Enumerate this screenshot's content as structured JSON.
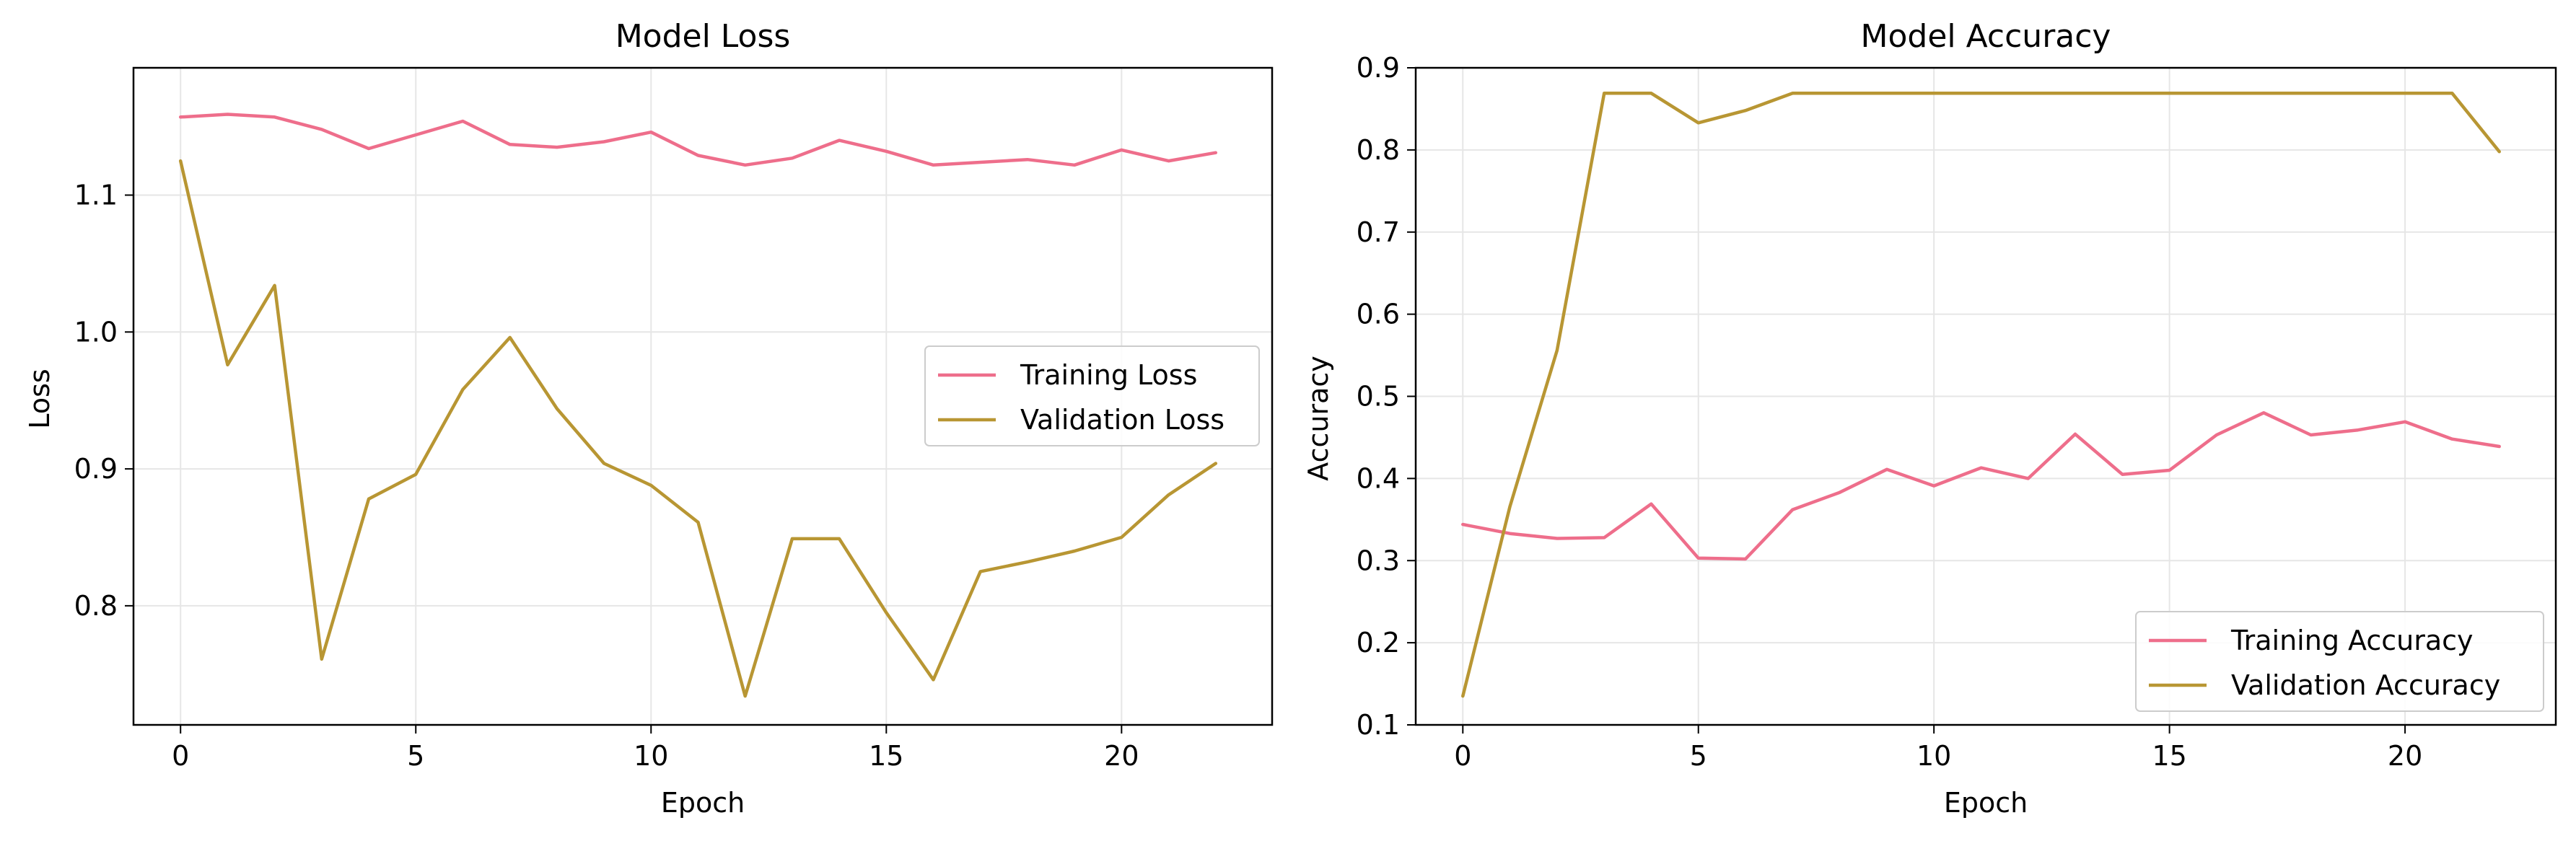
{
  "colors": {
    "training": "#ee6e8b",
    "validation": "#b89633",
    "grid": "#e6e6e6",
    "frame": "#000000"
  },
  "chart_data": [
    {
      "type": "line",
      "title": "Model Loss",
      "xlabel": "Epoch",
      "ylabel": "Loss",
      "xlim": [
        -1,
        23.2
      ],
      "ylim": [
        0.713,
        1.193
      ],
      "xticks": [
        0,
        5,
        10,
        15,
        20
      ],
      "yticks": [
        0.8,
        0.9,
        1.0,
        1.1
      ],
      "ytick_labels": [
        "0.8",
        "0.9",
        "1.0",
        "1.1"
      ],
      "grid": true,
      "legend_position": "center-right",
      "x": [
        0,
        1,
        2,
        3,
        4,
        5,
        6,
        7,
        8,
        9,
        10,
        11,
        12,
        13,
        14,
        15,
        16,
        17,
        18,
        19,
        20,
        21,
        22
      ],
      "series": [
        {
          "name": "Training Loss",
          "color_key": "training",
          "values": [
            1.157,
            1.159,
            1.157,
            1.148,
            1.134,
            1.144,
            1.154,
            1.137,
            1.135,
            1.139,
            1.146,
            1.129,
            1.122,
            1.127,
            1.14,
            1.132,
            1.122,
            1.124,
            1.126,
            1.122,
            1.133,
            1.125,
            1.131
          ]
        },
        {
          "name": "Validation Loss",
          "color_key": "validation",
          "values": [
            1.125,
            0.976,
            1.034,
            0.761,
            0.878,
            0.896,
            0.958,
            0.996,
            0.944,
            0.904,
            0.888,
            0.861,
            0.734,
            0.849,
            0.849,
            0.795,
            0.746,
            0.825,
            0.832,
            0.84,
            0.85,
            0.881,
            0.904
          ]
        }
      ]
    },
    {
      "type": "line",
      "title": "Model Accuracy",
      "xlabel": "Epoch",
      "ylabel": "Accuracy",
      "xlim": [
        -1,
        23.2
      ],
      "ylim": [
        0.1,
        0.9
      ],
      "xticks": [
        0,
        5,
        10,
        15,
        20
      ],
      "yticks": [
        0.1,
        0.2,
        0.3,
        0.4,
        0.5,
        0.6,
        0.7,
        0.8,
        0.9
      ],
      "ytick_labels": [
        "0.1",
        "0.2",
        "0.3",
        "0.4",
        "0.5",
        "0.6",
        "0.7",
        "0.8",
        "0.9"
      ],
      "grid": true,
      "legend_position": "lower-right",
      "x": [
        0,
        1,
        2,
        3,
        4,
        5,
        6,
        7,
        8,
        9,
        10,
        11,
        12,
        13,
        14,
        15,
        16,
        17,
        18,
        19,
        20,
        21,
        22
      ],
      "series": [
        {
          "name": "Training Accuracy",
          "color_key": "training",
          "values": [
            0.344,
            0.333,
            0.327,
            0.328,
            0.369,
            0.303,
            0.302,
            0.362,
            0.383,
            0.411,
            0.391,
            0.413,
            0.4,
            0.454,
            0.405,
            0.41,
            0.453,
            0.48,
            0.453,
            0.459,
            0.469,
            0.448,
            0.439
          ]
        },
        {
          "name": "Validation Accuracy",
          "color_key": "validation",
          "values": [
            0.135,
            0.366,
            0.556,
            0.869,
            0.869,
            0.833,
            0.848,
            0.869,
            0.869,
            0.869,
            0.869,
            0.869,
            0.869,
            0.869,
            0.869,
            0.869,
            0.869,
            0.869,
            0.869,
            0.869,
            0.869,
            0.869,
            0.798
          ]
        }
      ]
    }
  ]
}
